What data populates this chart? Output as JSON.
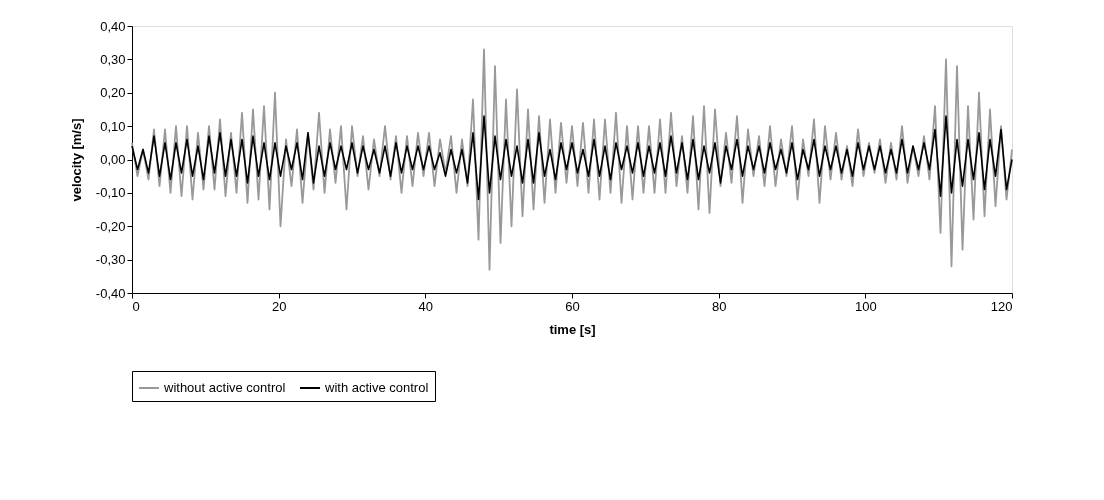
{
  "chart_data": {
    "type": "line",
    "xlabel": "time [s]",
    "ylabel": "velocity [m/s]",
    "x": [
      0,
      0.75,
      1.5,
      2.25,
      3,
      3.75,
      4.5,
      5.25,
      6,
      6.75,
      7.5,
      8.25,
      9,
      9.75,
      10.5,
      11.25,
      12,
      12.75,
      13.5,
      14.25,
      15,
      15.75,
      16.5,
      17.25,
      18,
      18.75,
      19.5,
      20.25,
      21,
      21.75,
      22.5,
      23.25,
      24,
      24.75,
      25.5,
      26.25,
      27,
      27.75,
      28.5,
      29.25,
      30,
      30.75,
      31.5,
      32.25,
      33,
      33.75,
      34.5,
      35.25,
      36,
      36.75,
      37.5,
      38.25,
      39,
      39.75,
      40.5,
      41.25,
      42,
      42.75,
      43.5,
      44.25,
      45,
      45.75,
      46.5,
      47.25,
      48,
      48.75,
      49.5,
      50.25,
      51,
      51.75,
      52.5,
      53.25,
      54,
      54.75,
      55.5,
      56.25,
      57,
      57.75,
      58.5,
      59.25,
      60,
      60.75,
      61.5,
      62.25,
      63,
      63.75,
      64.5,
      65.25,
      66,
      66.75,
      67.5,
      68.25,
      69,
      69.75,
      70.5,
      71.25,
      72,
      72.75,
      73.5,
      74.25,
      75,
      75.75,
      76.5,
      77.25,
      78,
      78.75,
      79.5,
      80.25,
      81,
      81.75,
      82.5,
      83.25,
      84,
      84.75,
      85.5,
      86.25,
      87,
      87.75,
      88.5,
      89.25,
      90,
      90.75,
      91.5,
      92.25,
      93,
      93.75,
      94.5,
      95.25,
      96,
      96.75,
      97.5,
      98.25,
      99,
      99.75,
      100.5,
      101.25,
      102,
      102.75,
      103.5,
      104.25,
      105,
      105.75,
      106.5,
      107.25,
      108,
      108.75,
      109.5,
      110.25,
      111,
      111.75,
      112.5,
      113.25,
      114,
      114.75,
      115.5,
      116.25,
      117,
      117.75,
      118.5,
      119.25,
      120
    ],
    "series": [
      {
        "name": "without active control",
        "color": "#999999",
        "values": [
          0.05,
          -0.05,
          0.03,
          -0.06,
          0.09,
          -0.08,
          0.09,
          -0.1,
          0.1,
          -0.11,
          0.1,
          -0.12,
          0.08,
          -0.09,
          0.1,
          -0.09,
          0.12,
          -0.11,
          0.08,
          -0.1,
          0.14,
          -0.13,
          0.15,
          -0.12,
          0.16,
          -0.15,
          0.2,
          -0.2,
          0.06,
          -0.08,
          0.09,
          -0.13,
          0.08,
          -0.09,
          0.14,
          -0.1,
          0.09,
          -0.07,
          0.1,
          -0.15,
          0.1,
          -0.05,
          0.07,
          -0.09,
          0.06,
          -0.05,
          0.1,
          -0.06,
          0.07,
          -0.1,
          0.07,
          -0.08,
          0.08,
          -0.05,
          0.08,
          -0.08,
          0.06,
          -0.04,
          0.07,
          -0.1,
          0.06,
          -0.08,
          0.18,
          -0.24,
          0.33,
          -0.33,
          0.28,
          -0.25,
          0.18,
          -0.2,
          0.21,
          -0.17,
          0.15,
          -0.15,
          0.13,
          -0.13,
          0.12,
          -0.1,
          0.11,
          -0.07,
          0.1,
          -0.08,
          0.11,
          -0.1,
          0.12,
          -0.12,
          0.12,
          -0.1,
          0.14,
          -0.13,
          0.1,
          -0.12,
          0.1,
          -0.1,
          0.1,
          -0.1,
          0.12,
          -0.1,
          0.14,
          -0.08,
          0.07,
          -0.1,
          0.13,
          -0.15,
          0.16,
          -0.16,
          0.15,
          -0.08,
          0.08,
          -0.07,
          0.13,
          -0.13,
          0.09,
          -0.05,
          0.07,
          -0.08,
          0.1,
          -0.08,
          0.06,
          -0.05,
          0.1,
          -0.12,
          0.06,
          -0.05,
          0.12,
          -0.13,
          0.1,
          -0.06,
          0.08,
          -0.06,
          0.04,
          -0.08,
          0.09,
          -0.05,
          0.05,
          -0.04,
          0.06,
          -0.07,
          0.05,
          -0.06,
          0.1,
          -0.07,
          0.04,
          -0.05,
          0.07,
          -0.06,
          0.16,
          -0.22,
          0.3,
          -0.32,
          0.28,
          -0.27,
          0.16,
          -0.18,
          0.2,
          -0.17,
          0.15,
          -0.14,
          0.1,
          -0.12,
          0.03
        ]
      },
      {
        "name": "with active control",
        "color": "#000000",
        "values": [
          0.04,
          -0.03,
          0.03,
          -0.04,
          0.07,
          -0.05,
          0.05,
          -0.06,
          0.05,
          -0.04,
          0.06,
          -0.05,
          0.04,
          -0.06,
          0.07,
          -0.04,
          0.08,
          -0.05,
          0.06,
          -0.05,
          0.06,
          -0.07,
          0.07,
          -0.05,
          0.05,
          -0.06,
          0.05,
          -0.05,
          0.04,
          -0.03,
          0.05,
          -0.06,
          0.08,
          -0.07,
          0.04,
          -0.05,
          0.05,
          -0.03,
          0.04,
          -0.03,
          0.05,
          -0.04,
          0.04,
          -0.03,
          0.03,
          -0.04,
          0.04,
          -0.05,
          0.05,
          -0.04,
          0.04,
          -0.03,
          0.04,
          -0.03,
          0.04,
          -0.03,
          0.02,
          -0.05,
          0.03,
          -0.04,
          0.03,
          -0.07,
          0.08,
          -0.12,
          0.13,
          -0.1,
          0.07,
          -0.06,
          0.06,
          -0.05,
          0.04,
          -0.07,
          0.06,
          -0.07,
          0.08,
          -0.05,
          0.03,
          -0.06,
          0.05,
          -0.03,
          0.05,
          -0.04,
          0.03,
          -0.05,
          0.06,
          -0.05,
          0.04,
          -0.06,
          0.05,
          -0.03,
          0.04,
          -0.04,
          0.05,
          -0.05,
          0.04,
          -0.04,
          0.05,
          -0.05,
          0.07,
          -0.04,
          0.05,
          -0.06,
          0.06,
          -0.06,
          0.04,
          -0.04,
          0.05,
          -0.07,
          0.04,
          -0.03,
          0.06,
          -0.05,
          0.04,
          -0.03,
          0.04,
          -0.04,
          0.05,
          -0.03,
          0.03,
          -0.04,
          0.05,
          -0.06,
          0.03,
          -0.03,
          0.06,
          -0.05,
          0.04,
          -0.03,
          0.04,
          -0.04,
          0.03,
          -0.05,
          0.05,
          -0.03,
          0.04,
          -0.03,
          0.04,
          -0.04,
          0.03,
          -0.04,
          0.06,
          -0.04,
          0.04,
          -0.03,
          0.05,
          -0.03,
          0.09,
          -0.11,
          0.13,
          -0.1,
          0.06,
          -0.08,
          0.06,
          -0.06,
          0.08,
          -0.09,
          0.06,
          -0.05,
          0.09,
          -0.09,
          0.0
        ]
      }
    ],
    "xlim": [
      0,
      120
    ],
    "xticks": [
      0,
      20,
      40,
      60,
      80,
      100,
      120
    ],
    "ylim": [
      -0.4,
      0.4
    ],
    "yticks": [
      {
        "value": -0.4,
        "label": "-0,40"
      },
      {
        "value": -0.3,
        "label": "-0,30"
      },
      {
        "value": -0.2,
        "label": "-0,20"
      },
      {
        "value": -0.1,
        "label": "-0,10"
      },
      {
        "value": 0,
        "label": "0,00"
      },
      {
        "value": 0.1,
        "label": "0,10"
      },
      {
        "value": 0.2,
        "label": "0,20"
      },
      {
        "value": 0.3,
        "label": "0,30"
      },
      {
        "value": 0.4,
        "label": "0,40"
      }
    ],
    "grid": false,
    "legend": "bottom",
    "marker": "none",
    "line_style": "solid"
  }
}
